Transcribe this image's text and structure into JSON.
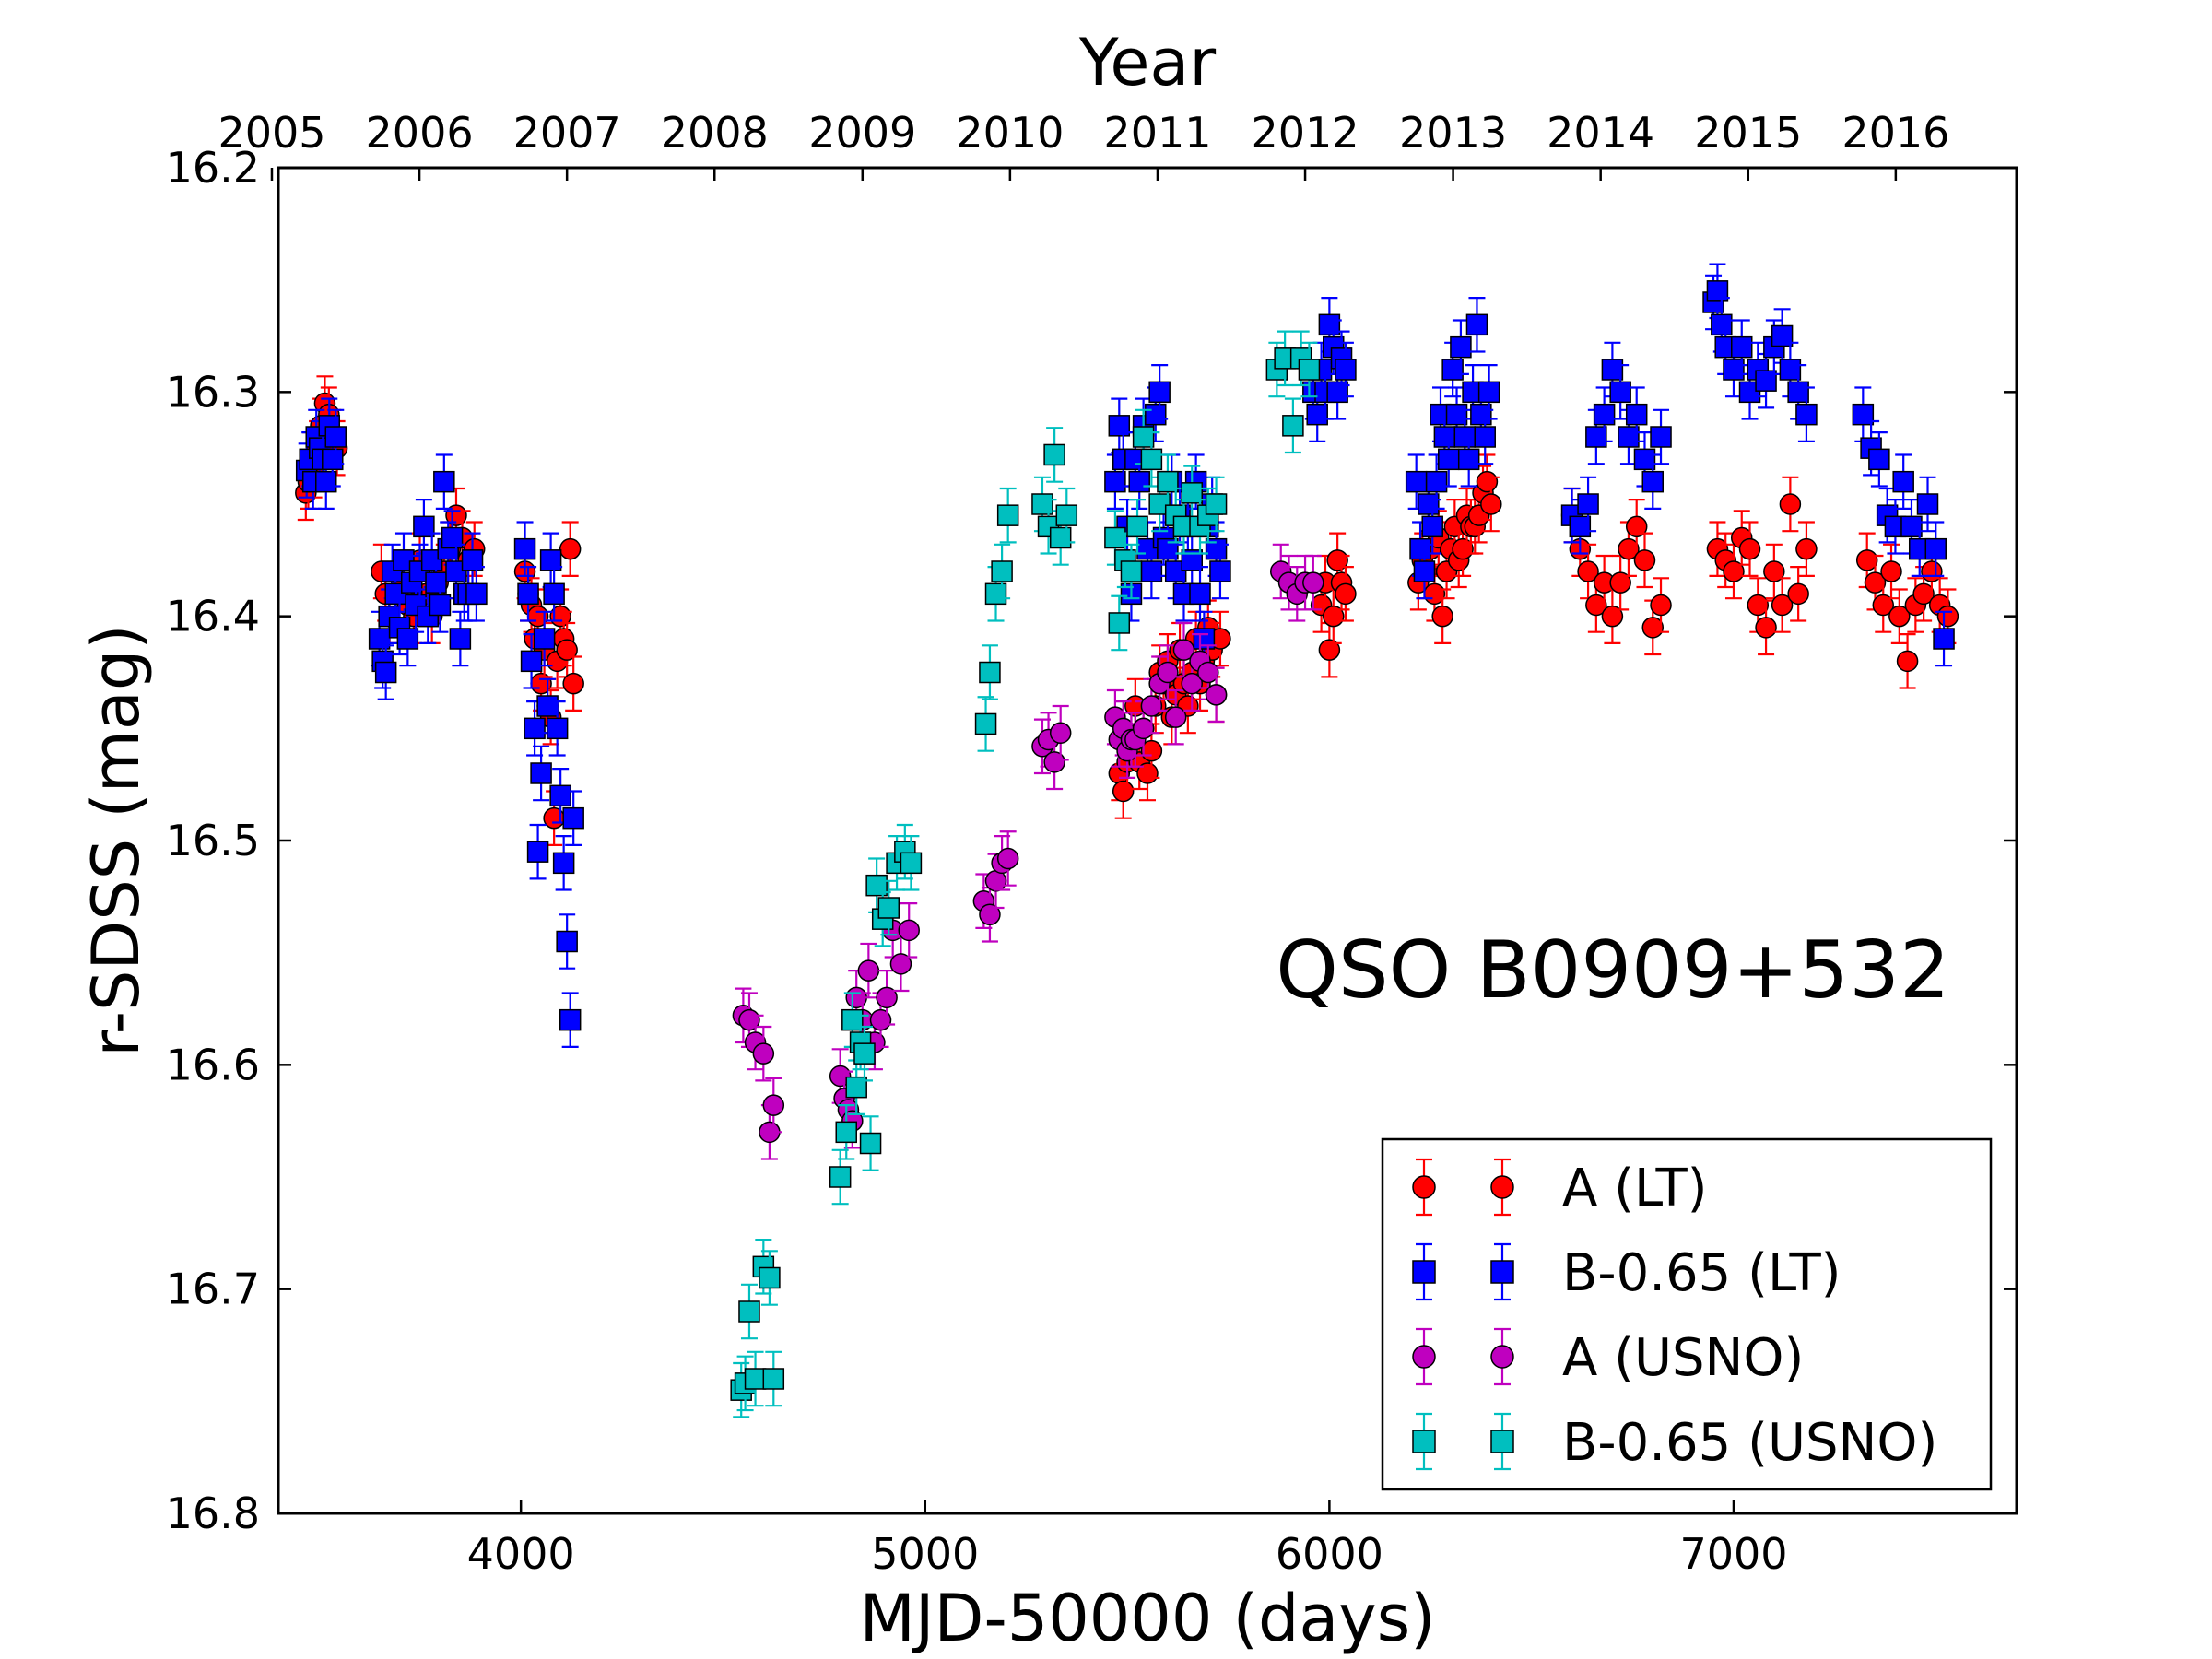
{
  "chart_data": {
    "type": "scatter",
    "annotation": "QSO B0909+532",
    "xlabel": "MJD-50000 (days)",
    "ylabel": "r-SDSS (mag)",
    "top_xlabel": "Year",
    "xlim": [
      3400,
      7700
    ],
    "ylim": [
      16.8,
      16.2
    ],
    "y_inverted": true,
    "grid": false,
    "legend_position": "lower-right",
    "xticks": [
      "4000",
      "5000",
      "6000",
      "7000"
    ],
    "yticks": [
      "16.2",
      "16.3",
      "16.4",
      "16.5",
      "16.6",
      "16.7",
      "16.8"
    ],
    "top_ticks": [
      {
        "label": "2005",
        "mjd": 3384
      },
      {
        "label": "2006",
        "mjd": 3749
      },
      {
        "label": "2007",
        "mjd": 4114
      },
      {
        "label": "2008",
        "mjd": 4479
      },
      {
        "label": "2009",
        "mjd": 4845
      },
      {
        "label": "2010",
        "mjd": 5210
      },
      {
        "label": "2011",
        "mjd": 5575
      },
      {
        "label": "2012",
        "mjd": 5940
      },
      {
        "label": "2013",
        "mjd": 6306
      },
      {
        "label": "2014",
        "mjd": 6671
      },
      {
        "label": "2015",
        "mjd": 7036
      },
      {
        "label": "2016",
        "mjd": 7401
      }
    ],
    "series": [
      {
        "name": "A (LT)",
        "marker": "circle",
        "color": "#ff0000",
        "errcolor": "#ff0000",
        "x": [
          3468,
          3474,
          3480,
          3488,
          3496,
          3505,
          3515,
          3525,
          3535,
          3545,
          3655,
          3665,
          3675,
          3690,
          3705,
          3720,
          3735,
          3750,
          3765,
          3780,
          3795,
          3810,
          3825,
          3840,
          3855,
          3870,
          3885,
          4010,
          4018,
          4026,
          4034,
          4042,
          4050,
          4058,
          4066,
          4074,
          4082,
          4090,
          4098,
          4106,
          4114,
          4122,
          4130,
          5480,
          5490,
          5500,
          5510,
          5520,
          5530,
          5540,
          5550,
          5560,
          5570,
          5580,
          5590,
          5600,
          5610,
          5620,
          5630,
          5640,
          5650,
          5660,
          5670,
          5680,
          5690,
          5700,
          5710,
          5720,
          5730,
          5980,
          5990,
          6000,
          6010,
          6020,
          6030,
          6040,
          6220,
          6230,
          6240,
          6250,
          6260,
          6270,
          6280,
          6290,
          6300,
          6310,
          6320,
          6330,
          6340,
          6350,
          6360,
          6370,
          6380,
          6390,
          6400,
          6600,
          6620,
          6640,
          6660,
          6680,
          6700,
          6720,
          6740,
          6760,
          6780,
          6800,
          6820,
          6960,
          6980,
          7000,
          7020,
          7040,
          7060,
          7080,
          7100,
          7120,
          7140,
          7160,
          7180,
          7330,
          7350,
          7370,
          7390,
          7410,
          7430,
          7450,
          7470,
          7490,
          7510,
          7530
        ],
        "y": [
          16.345,
          16.34,
          16.33,
          16.335,
          16.325,
          16.315,
          16.305,
          16.31,
          16.32,
          16.325,
          16.38,
          16.39,
          16.4,
          16.39,
          16.385,
          16.395,
          16.4,
          16.375,
          16.39,
          16.4,
          16.385,
          16.38,
          16.37,
          16.355,
          16.365,
          16.375,
          16.37,
          16.38,
          16.39,
          16.395,
          16.41,
          16.4,
          16.43,
          16.415,
          16.44,
          16.445,
          16.49,
          16.42,
          16.4,
          16.41,
          16.415,
          16.37,
          16.43,
          16.47,
          16.478,
          16.465,
          16.455,
          16.44,
          16.465,
          16.45,
          16.47,
          16.46,
          16.44,
          16.425,
          16.43,
          16.42,
          16.445,
          16.435,
          16.415,
          16.43,
          16.44,
          16.425,
          16.41,
          16.43,
          16.42,
          16.405,
          16.415,
          16.435,
          16.41,
          16.395,
          16.385,
          16.415,
          16.4,
          16.375,
          16.385,
          16.39,
          16.385,
          16.375,
          16.38,
          16.37,
          16.39,
          16.365,
          16.4,
          16.38,
          16.37,
          16.36,
          16.375,
          16.37,
          16.355,
          16.36,
          16.36,
          16.355,
          16.345,
          16.34,
          16.35,
          16.355,
          16.37,
          16.38,
          16.395,
          16.385,
          16.4,
          16.385,
          16.37,
          16.36,
          16.375,
          16.405,
          16.395,
          16.37,
          16.375,
          16.38,
          16.365,
          16.37,
          16.395,
          16.405,
          16.38,
          16.395,
          16.35,
          16.39,
          16.37,
          16.375,
          16.385,
          16.395,
          16.38,
          16.4,
          16.42,
          16.395,
          16.39,
          16.38,
          16.395,
          16.4
        ]
      },
      {
        "name": "B-0.65 (LT)",
        "marker": "square",
        "color": "#0000ff",
        "errcolor": "#0000ff",
        "x": [
          3470,
          3478,
          3486,
          3494,
          3502,
          3510,
          3518,
          3526,
          3534,
          3542,
          3650,
          3658,
          3666,
          3674,
          3682,
          3690,
          3700,
          3710,
          3720,
          3730,
          3740,
          3750,
          3760,
          3770,
          3780,
          3790,
          3800,
          3810,
          3820,
          3830,
          3840,
          3850,
          3860,
          3870,
          3880,
          3890,
          4010,
          4018,
          4026,
          4034,
          4042,
          4050,
          4058,
          4066,
          4074,
          4082,
          4090,
          4098,
          4106,
          4114,
          4122,
          4130,
          5470,
          5480,
          5490,
          5500,
          5510,
          5520,
          5530,
          5540,
          5550,
          5560,
          5570,
          5580,
          5590,
          5600,
          5610,
          5620,
          5630,
          5640,
          5650,
          5660,
          5670,
          5680,
          5690,
          5700,
          5710,
          5720,
          5730,
          5960,
          5970,
          5980,
          5990,
          6000,
          6010,
          6020,
          6030,
          6040,
          6215,
          6225,
          6235,
          6245,
          6255,
          6265,
          6275,
          6285,
          6295,
          6305,
          6315,
          6325,
          6335,
          6345,
          6355,
          6365,
          6375,
          6385,
          6395,
          6600,
          6620,
          6640,
          6660,
          6680,
          6700,
          6720,
          6740,
          6760,
          6780,
          6800,
          6820,
          6950,
          6960,
          6970,
          6980,
          7000,
          7020,
          7040,
          7060,
          7080,
          7100,
          7120,
          7140,
          7160,
          7180,
          7320,
          7340,
          7360,
          7380,
          7400,
          7420,
          7440,
          7460,
          7480,
          7500,
          7520
        ],
        "y": [
          16.335,
          16.33,
          16.34,
          16.32,
          16.325,
          16.33,
          16.34,
          16.315,
          16.33,
          16.32,
          16.41,
          16.42,
          16.425,
          16.4,
          16.38,
          16.39,
          16.405,
          16.375,
          16.41,
          16.385,
          16.395,
          16.38,
          16.36,
          16.4,
          16.375,
          16.385,
          16.395,
          16.34,
          16.37,
          16.365,
          16.38,
          16.41,
          16.39,
          16.39,
          16.375,
          16.39,
          16.37,
          16.39,
          16.42,
          16.45,
          16.505,
          16.47,
          16.41,
          16.44,
          16.375,
          16.39,
          16.45,
          16.48,
          16.51,
          16.545,
          16.58,
          16.49,
          16.34,
          16.315,
          16.33,
          16.36,
          16.39,
          16.33,
          16.34,
          16.315,
          16.37,
          16.38,
          16.31,
          16.3,
          16.365,
          16.37,
          16.34,
          16.38,
          16.355,
          16.39,
          16.36,
          16.375,
          16.34,
          16.39,
          16.41,
          16.36,
          16.35,
          16.37,
          16.38,
          16.3,
          16.31,
          16.29,
          16.3,
          16.27,
          16.28,
          16.3,
          16.285,
          16.29,
          16.34,
          16.37,
          16.38,
          16.35,
          16.36,
          16.34,
          16.31,
          16.32,
          16.33,
          16.29,
          16.31,
          16.28,
          16.32,
          16.33,
          16.3,
          16.27,
          16.31,
          16.32,
          16.3,
          16.355,
          16.36,
          16.35,
          16.32,
          16.31,
          16.29,
          16.3,
          16.32,
          16.31,
          16.33,
          16.34,
          16.32,
          16.26,
          16.255,
          16.27,
          16.28,
          16.29,
          16.28,
          16.3,
          16.29,
          16.295,
          16.28,
          16.275,
          16.29,
          16.3,
          16.31,
          16.31,
          16.325,
          16.33,
          16.355,
          16.36,
          16.34,
          16.36,
          16.37,
          16.35,
          16.37,
          16.41
        ]
      },
      {
        "name": "A (USNO)",
        "marker": "circle",
        "color": "#bf00bf",
        "errcolor": "#bf00bf",
        "x": [
          4550,
          4565,
          4580,
          4600,
          4615,
          4625,
          4790,
          4800,
          4810,
          4820,
          4830,
          4845,
          4860,
          4875,
          4890,
          4905,
          4920,
          4940,
          4960,
          5145,
          5160,
          5175,
          5190,
          5205,
          5290,
          5305,
          5320,
          5335,
          5470,
          5480,
          5490,
          5500,
          5510,
          5520,
          5540,
          5560,
          5580,
          5600,
          5620,
          5640,
          5660,
          5680,
          5700,
          5720,
          5880,
          5900,
          5920,
          5940,
          5960
        ],
        "y": [
          16.578,
          16.58,
          16.59,
          16.595,
          16.63,
          16.618,
          16.605,
          16.615,
          16.62,
          16.625,
          16.57,
          16.58,
          16.558,
          16.59,
          16.58,
          16.57,
          16.54,
          16.555,
          16.54,
          16.527,
          16.533,
          16.518,
          16.51,
          16.508,
          16.458,
          16.455,
          16.465,
          16.452,
          16.445,
          16.455,
          16.45,
          16.46,
          16.455,
          16.455,
          16.45,
          16.44,
          16.43,
          16.425,
          16.445,
          16.415,
          16.43,
          16.42,
          16.425,
          16.435,
          16.38,
          16.385,
          16.39,
          16.385,
          16.385
        ]
      },
      {
        "name": "B-0.65 (USNO)",
        "marker": "square",
        "color": "#00bfbf",
        "errcolor": "#00bfbf",
        "x": [
          4545,
          4555,
          4565,
          4580,
          4600,
          4615,
          4625,
          4790,
          4805,
          4820,
          4830,
          4840,
          4850,
          4865,
          4880,
          4895,
          4910,
          4930,
          4950,
          4965,
          5150,
          5160,
          5175,
          5190,
          5205,
          5290,
          5305,
          5320,
          5335,
          5350,
          5470,
          5480,
          5495,
          5510,
          5525,
          5540,
          5560,
          5580,
          5600,
          5620,
          5640,
          5660,
          5680,
          5700,
          5720,
          5870,
          5890,
          5910,
          5930,
          5950
        ],
        "y": [
          16.745,
          16.742,
          16.71,
          16.74,
          16.69,
          16.695,
          16.74,
          16.65,
          16.63,
          16.58,
          16.61,
          16.59,
          16.595,
          16.635,
          16.52,
          16.535,
          16.53,
          16.51,
          16.505,
          16.51,
          16.448,
          16.425,
          16.39,
          16.38,
          16.355,
          16.35,
          16.36,
          16.328,
          16.365,
          16.355,
          16.365,
          16.403,
          16.375,
          16.38,
          16.36,
          16.32,
          16.33,
          16.35,
          16.34,
          16.355,
          16.36,
          16.345,
          16.36,
          16.355,
          16.35,
          16.29,
          16.285,
          16.315,
          16.285,
          16.29
        ]
      }
    ]
  }
}
